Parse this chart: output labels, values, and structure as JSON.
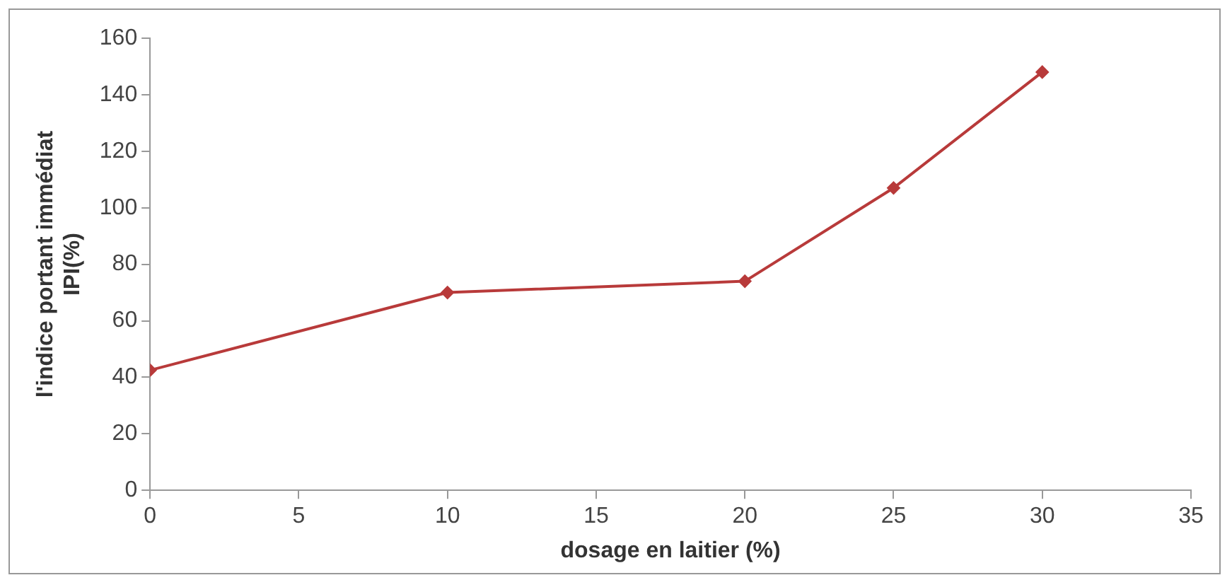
{
  "chart_data": {
    "type": "line",
    "xlabel": "dosage en laitier (%)",
    "ylabel": "l'indice portant immédiat\nIPI(%)",
    "x": [
      0,
      10,
      20,
      25,
      30
    ],
    "series": [
      {
        "color": "#b83a3a",
        "values": [
          42.5,
          70,
          74,
          107,
          148
        ]
      }
    ],
    "xlim": [
      0,
      35
    ],
    "xticks": [
      0,
      5,
      10,
      15,
      20,
      25,
      30,
      35
    ],
    "ylim": [
      0,
      160
    ],
    "yticks": [
      0,
      20,
      40,
      60,
      80,
      100,
      120,
      140,
      160
    ],
    "grid": false,
    "legend": false,
    "marker": "diamond",
    "line_style": "solid"
  }
}
